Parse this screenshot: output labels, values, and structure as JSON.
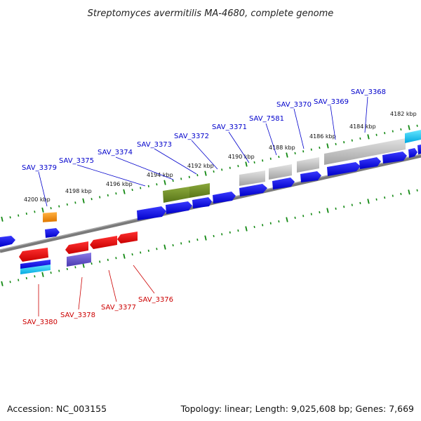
{
  "title": "Streptomyces avermitilis MA-4680, complete genome",
  "footer": {
    "accession": "Accession: NC_003155",
    "summary": "Topology: linear; Length: 9,025,608 bp; Genes: 7,669"
  },
  "scale_labels": [
    {
      "text": "4200 kbp",
      "position_kbp": 4200
    },
    {
      "text": "4198 kbp",
      "position_kbp": 4198
    },
    {
      "text": "4196 kbp",
      "position_kbp": 4196
    },
    {
      "text": "4194 kbp",
      "position_kbp": 4194
    },
    {
      "text": "4192 kbp",
      "position_kbp": 4192
    },
    {
      "text": "4190 kbp",
      "position_kbp": 4190
    },
    {
      "text": "4188 kbp",
      "position_kbp": 4188
    },
    {
      "text": "4186 kbp",
      "position_kbp": 4186
    },
    {
      "text": "4184 kbp",
      "position_kbp": 4184
    },
    {
      "text": "4182 kbp",
      "position_kbp": 4182
    }
  ],
  "forward_genes": [
    {
      "label": "SAV_3379",
      "color": "#0000ff"
    },
    {
      "label": "SAV_3375",
      "color": "#0000ff"
    },
    {
      "label": "SAV_3374",
      "color": "#0000ff"
    },
    {
      "label": "SAV_3373",
      "color": "#0000ff"
    },
    {
      "label": "SAV_3372",
      "color": "#0000ff"
    },
    {
      "label": "SAV_3371",
      "color": "#0000ff"
    },
    {
      "label": "SAV_7581",
      "color": "#0000ff"
    },
    {
      "label": "SAV_3370",
      "color": "#0000ff"
    },
    {
      "label": "SAV_3369",
      "color": "#0000ff"
    },
    {
      "label": "SAV_3368",
      "color": "#0000ff"
    }
  ],
  "reverse_genes": [
    {
      "label": "SAV_3380",
      "color": "#ff0000"
    },
    {
      "label": "SAV_3378",
      "color": "#ff0000"
    },
    {
      "label": "SAV_3377",
      "color": "#ff0000"
    },
    {
      "label": "SAV_3376",
      "color": "#ff0000"
    }
  ],
  "colors": {
    "forward_cds": "#0000ff",
    "reverse_cds": "#ff0000",
    "backbone": "#888888",
    "ticks": "#118811",
    "olive_feature": "#6b8e23",
    "grey_feature": "#b0b0b0",
    "orange_feature": "#ff9900",
    "cyan_feature": "#00ccff",
    "purple_feature": "#6a5acd"
  }
}
